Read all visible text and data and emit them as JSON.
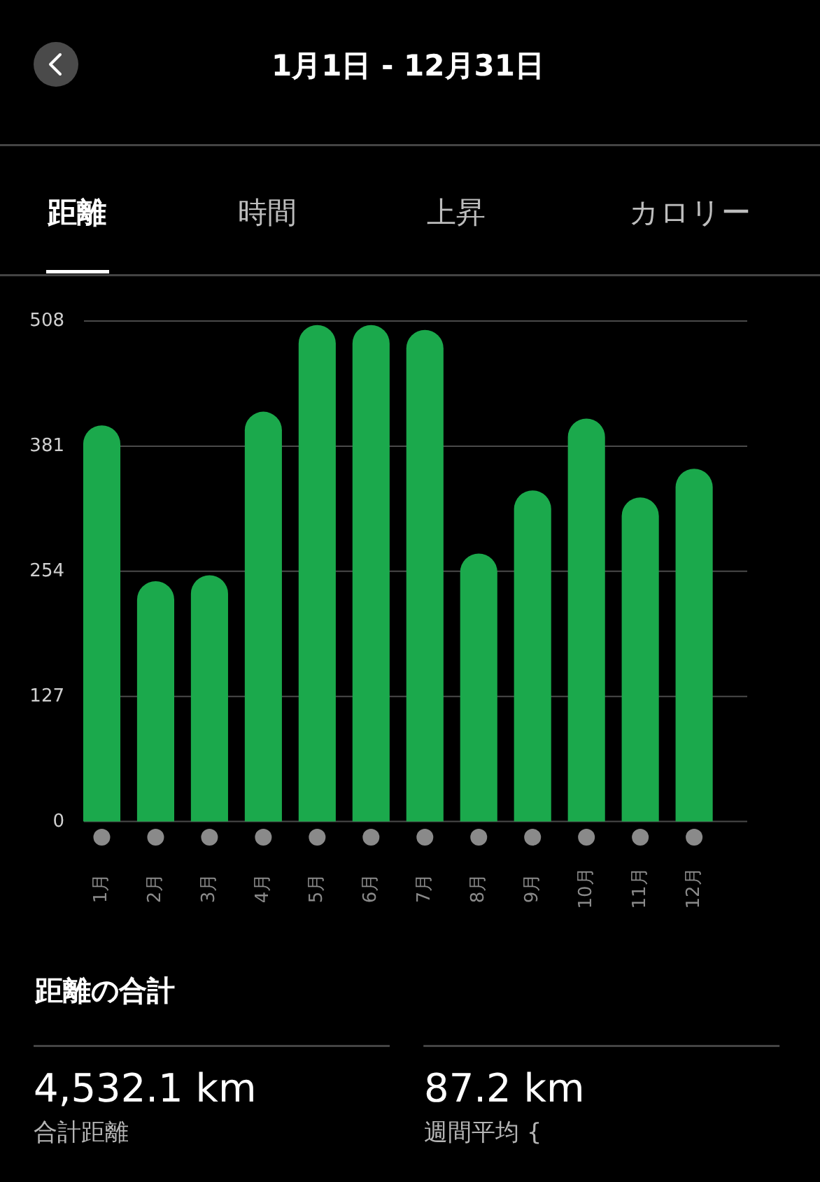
{
  "chart_data": {
    "type": "bar",
    "title": "1月1日 - 12月31日",
    "categories": [
      "1月",
      "2月",
      "3月",
      "4月",
      "5月",
      "6月",
      "7月",
      "8月",
      "9月",
      "10月",
      "11月",
      "12月"
    ],
    "values": [
      402,
      244,
      250,
      416,
      504,
      504,
      499,
      272,
      336,
      409,
      329,
      358
    ],
    "color": "#1ba94c",
    "ylim": [
      0,
      508
    ],
    "yticks": [
      0,
      127,
      254,
      381,
      508
    ],
    "grid": "y",
    "annotations": [
      "距離",
      "時間",
      "上昇",
      "カロリー",
      "距離の合計",
      "4,532.1 km",
      "合計距離",
      "87.2 km",
      "週間平均 {"
    ]
  }
}
